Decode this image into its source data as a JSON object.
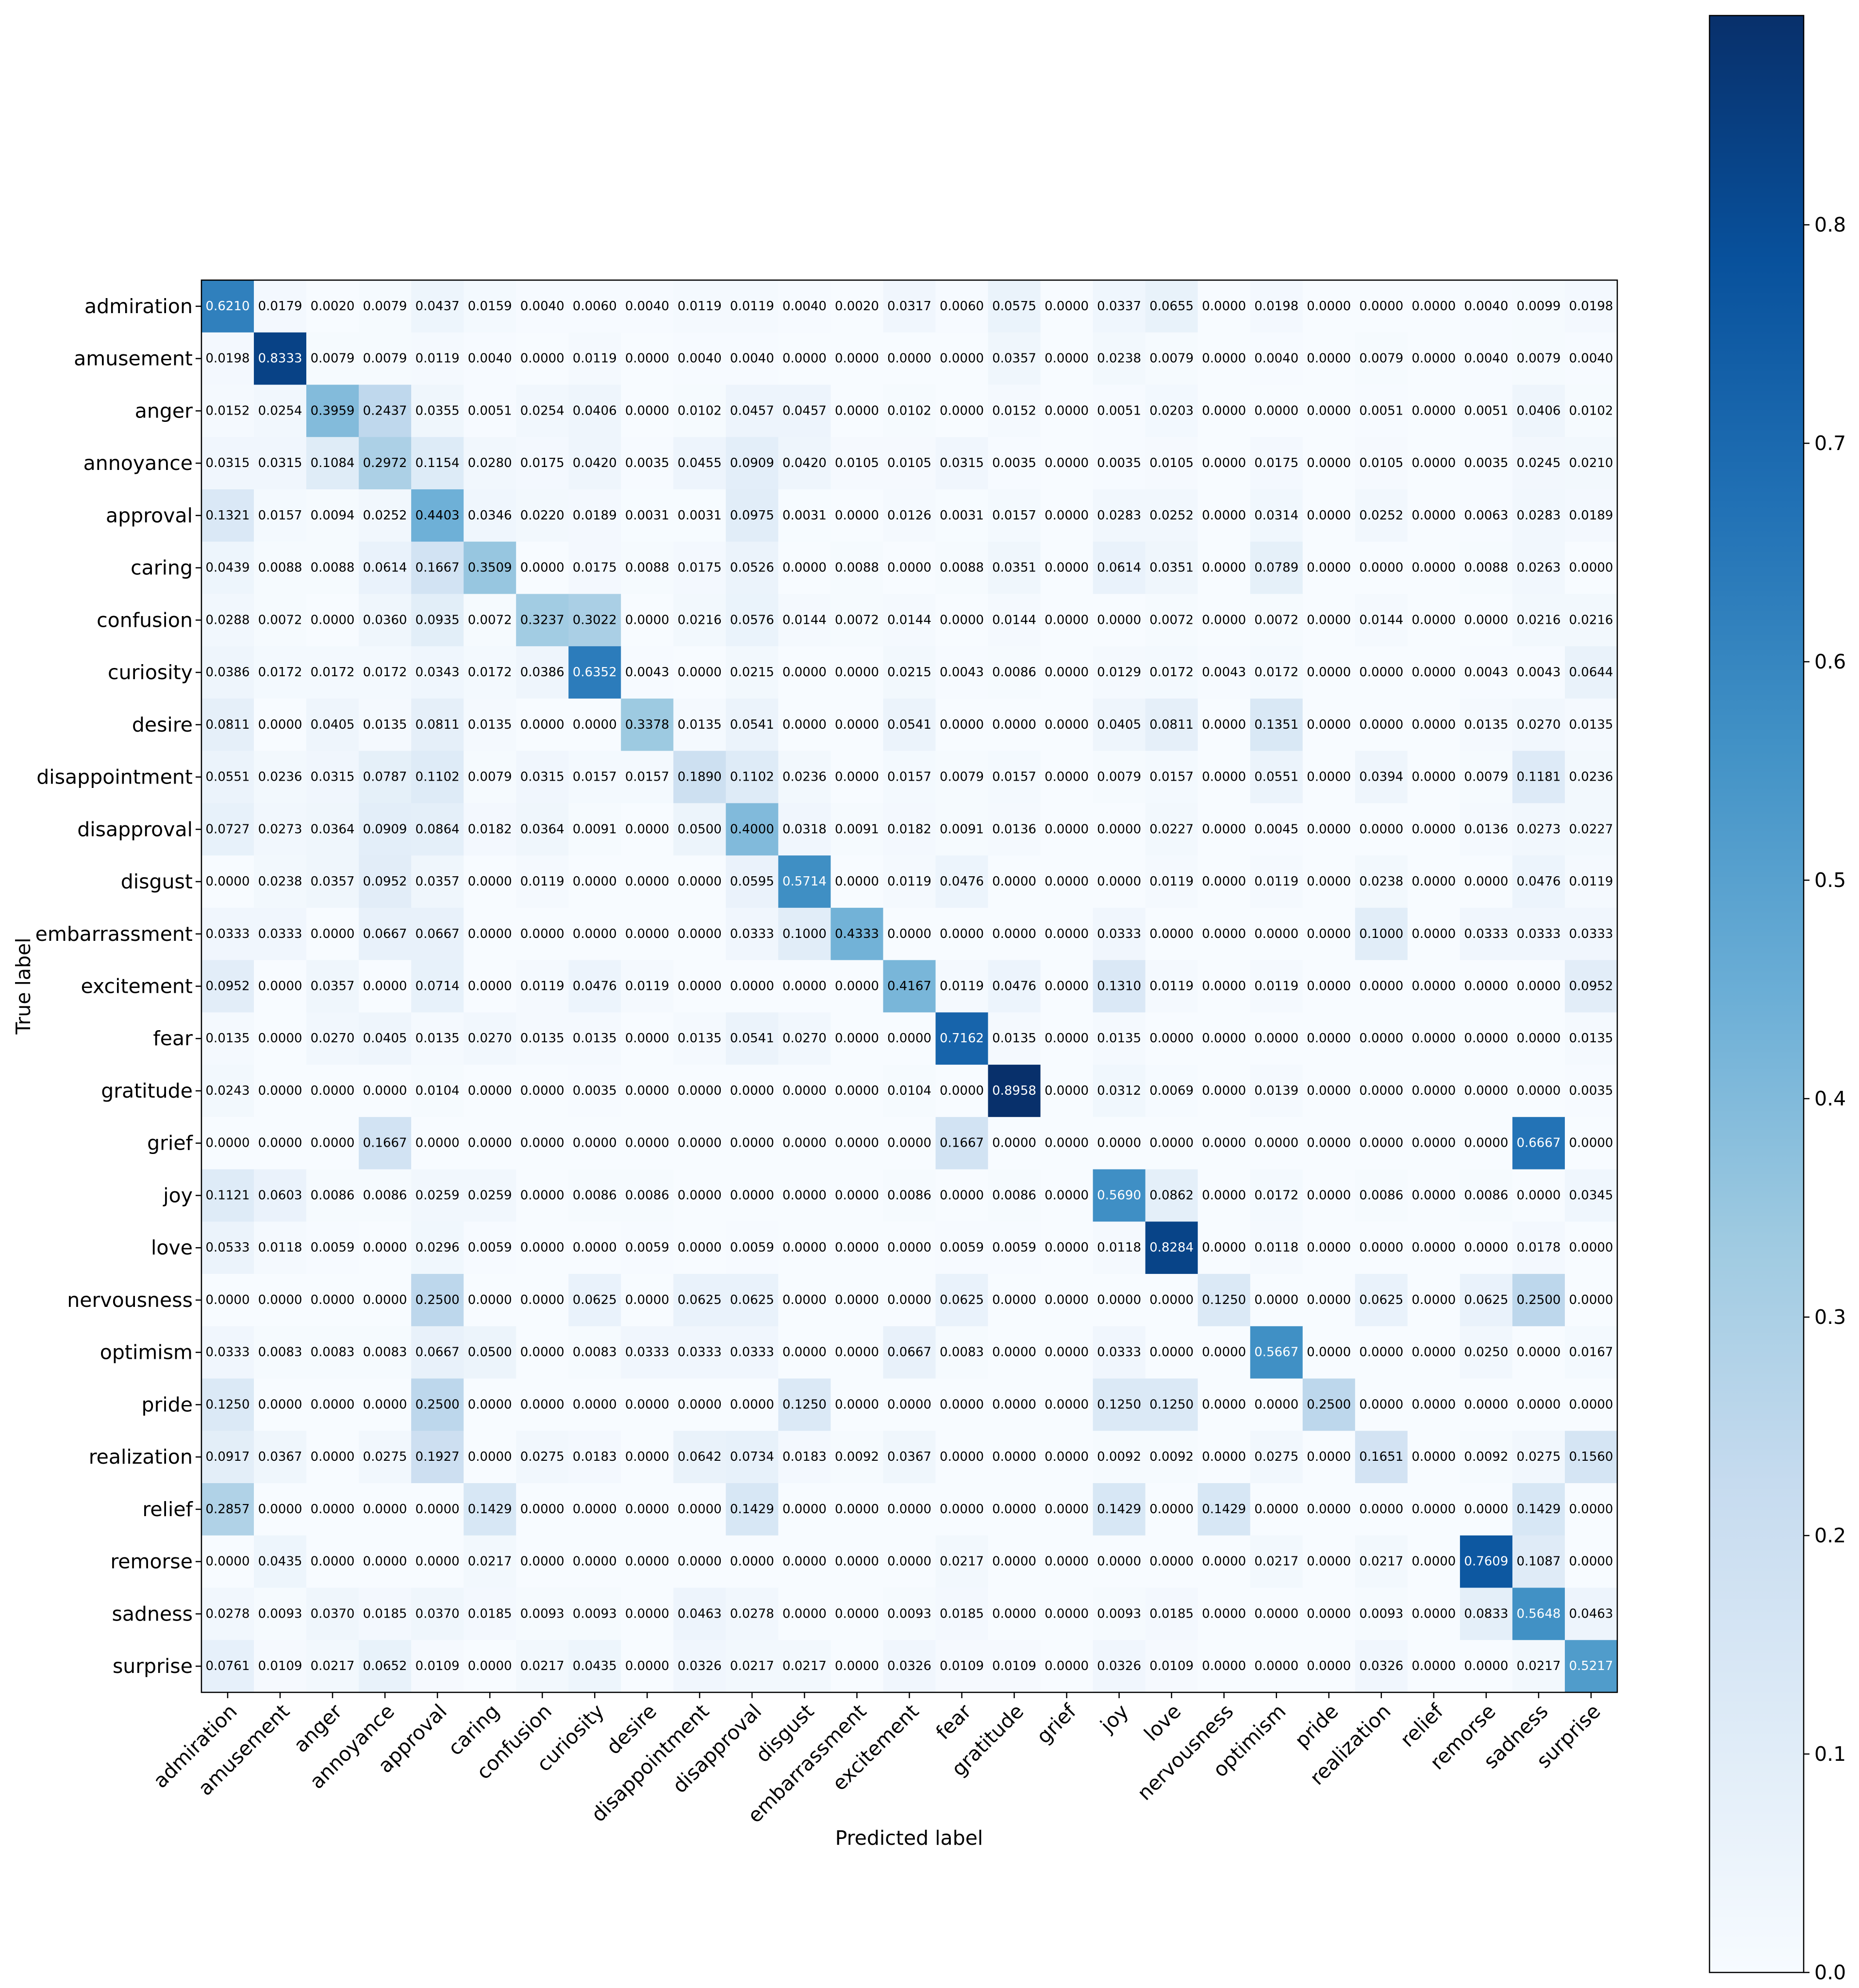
{
  "chart_data": {
    "type": "heatmap",
    "colormap": "Blues",
    "xlabel": "Predicted label",
    "ylabel": "True label",
    "categories": [
      "admiration",
      "amusement",
      "anger",
      "annoyance",
      "approval",
      "caring",
      "confusion",
      "curiosity",
      "desire",
      "disappointment",
      "disapproval",
      "disgust",
      "embarrassment",
      "excitement",
      "fear",
      "gratitude",
      "grief",
      "joy",
      "love",
      "nervousness",
      "optimism",
      "pride",
      "realization",
      "relief",
      "remorse",
      "sadness",
      "surprise"
    ],
    "values": [
      [
        0.621,
        0.0179,
        0.002,
        0.0079,
        0.0437,
        0.0159,
        0.004,
        0.006,
        0.004,
        0.0119,
        0.0119,
        0.004,
        0.002,
        0.0317,
        0.006,
        0.0575,
        0.0,
        0.0337,
        0.0655,
        0.0,
        0.0198,
        0.0,
        0.0,
        0.0,
        0.004,
        0.0099,
        0.0198
      ],
      [
        0.0198,
        0.8333,
        0.0079,
        0.0079,
        0.0119,
        0.004,
        0.0,
        0.0119,
        0.0,
        0.004,
        0.004,
        0.0,
        0.0,
        0.0,
        0.0,
        0.0357,
        0.0,
        0.0238,
        0.0079,
        0.0,
        0.004,
        0.0,
        0.0079,
        0.0,
        0.004,
        0.0079,
        0.004
      ],
      [
        0.0152,
        0.0254,
        0.3959,
        0.2437,
        0.0355,
        0.0051,
        0.0254,
        0.0406,
        0.0,
        0.0102,
        0.0457,
        0.0457,
        0.0,
        0.0102,
        0.0,
        0.0152,
        0.0,
        0.0051,
        0.0203,
        0.0,
        0.0,
        0.0,
        0.0051,
        0.0,
        0.0051,
        0.0406,
        0.0102
      ],
      [
        0.0315,
        0.0315,
        0.1084,
        0.2972,
        0.1154,
        0.028,
        0.0175,
        0.042,
        0.0035,
        0.0455,
        0.0909,
        0.042,
        0.0105,
        0.0105,
        0.0315,
        0.0035,
        0.0,
        0.0035,
        0.0105,
        0.0,
        0.0175,
        0.0,
        0.0105,
        0.0,
        0.0035,
        0.0245,
        0.021
      ],
      [
        0.1321,
        0.0157,
        0.0094,
        0.0252,
        0.4403,
        0.0346,
        0.022,
        0.0189,
        0.0031,
        0.0031,
        0.0975,
        0.0031,
        0.0,
        0.0126,
        0.0031,
        0.0157,
        0.0,
        0.0283,
        0.0252,
        0.0,
        0.0314,
        0.0,
        0.0252,
        0.0,
        0.0063,
        0.0283,
        0.0189
      ],
      [
        0.0439,
        0.0088,
        0.0088,
        0.0614,
        0.1667,
        0.3509,
        0.0,
        0.0175,
        0.0088,
        0.0175,
        0.0526,
        0.0,
        0.0088,
        0.0,
        0.0088,
        0.0351,
        0.0,
        0.0614,
        0.0351,
        0.0,
        0.0789,
        0.0,
        0.0,
        0.0,
        0.0088,
        0.0263,
        0.0
      ],
      [
        0.0288,
        0.0072,
        0.0,
        0.036,
        0.0935,
        0.0072,
        0.3237,
        0.3022,
        0.0,
        0.0216,
        0.0576,
        0.0144,
        0.0072,
        0.0144,
        0.0,
        0.0144,
        0.0,
        0.0,
        0.0072,
        0.0,
        0.0072,
        0.0,
        0.0144,
        0.0,
        0.0,
        0.0216,
        0.0216
      ],
      [
        0.0386,
        0.0172,
        0.0172,
        0.0172,
        0.0343,
        0.0172,
        0.0386,
        0.6352,
        0.0043,
        0.0,
        0.0215,
        0.0,
        0.0,
        0.0215,
        0.0043,
        0.0086,
        0.0,
        0.0129,
        0.0172,
        0.0043,
        0.0172,
        0.0,
        0.0,
        0.0,
        0.0043,
        0.0043,
        0.0644
      ],
      [
        0.0811,
        0.0,
        0.0405,
        0.0135,
        0.0811,
        0.0135,
        0.0,
        0.0,
        0.3378,
        0.0135,
        0.0541,
        0.0,
        0.0,
        0.0541,
        0.0,
        0.0,
        0.0,
        0.0405,
        0.0811,
        0.0,
        0.1351,
        0.0,
        0.0,
        0.0,
        0.0135,
        0.027,
        0.0135
      ],
      [
        0.0551,
        0.0236,
        0.0315,
        0.0787,
        0.1102,
        0.0079,
        0.0315,
        0.0157,
        0.0157,
        0.189,
        0.1102,
        0.0236,
        0.0,
        0.0157,
        0.0079,
        0.0157,
        0.0,
        0.0079,
        0.0157,
        0.0,
        0.0551,
        0.0,
        0.0394,
        0.0,
        0.0079,
        0.1181,
        0.0236
      ],
      [
        0.0727,
        0.0273,
        0.0364,
        0.0909,
        0.0864,
        0.0182,
        0.0364,
        0.0091,
        0.0,
        0.05,
        0.4,
        0.0318,
        0.0091,
        0.0182,
        0.0091,
        0.0136,
        0.0,
        0.0,
        0.0227,
        0.0,
        0.0045,
        0.0,
        0.0,
        0.0,
        0.0136,
        0.0273,
        0.0227
      ],
      [
        0.0,
        0.0238,
        0.0357,
        0.0952,
        0.0357,
        0.0,
        0.0119,
        0.0,
        0.0,
        0.0,
        0.0595,
        0.5714,
        0.0,
        0.0119,
        0.0476,
        0.0,
        0.0,
        0.0,
        0.0119,
        0.0,
        0.0119,
        0.0,
        0.0238,
        0.0,
        0.0,
        0.0476,
        0.0119
      ],
      [
        0.0333,
        0.0333,
        0.0,
        0.0667,
        0.0667,
        0.0,
        0.0,
        0.0,
        0.0,
        0.0,
        0.0333,
        0.1,
        0.4333,
        0.0,
        0.0,
        0.0,
        0.0,
        0.0333,
        0.0,
        0.0,
        0.0,
        0.0,
        0.1,
        0.0,
        0.0333,
        0.0333,
        0.0333
      ],
      [
        0.0952,
        0.0,
        0.0357,
        0.0,
        0.0714,
        0.0,
        0.0119,
        0.0476,
        0.0119,
        0.0,
        0.0,
        0.0,
        0.0,
        0.4167,
        0.0119,
        0.0476,
        0.0,
        0.131,
        0.0119,
        0.0,
        0.0119,
        0.0,
        0.0,
        0.0,
        0.0,
        0.0,
        0.0952
      ],
      [
        0.0135,
        0.0,
        0.027,
        0.0405,
        0.0135,
        0.027,
        0.0135,
        0.0135,
        0.0,
        0.0135,
        0.0541,
        0.027,
        0.0,
        0.0,
        0.7162,
        0.0135,
        0.0,
        0.0135,
        0.0,
        0.0,
        0.0,
        0.0,
        0.0,
        0.0,
        0.0,
        0.0,
        0.0135
      ],
      [
        0.0243,
        0.0,
        0.0,
        0.0,
        0.0104,
        0.0,
        0.0,
        0.0035,
        0.0,
        0.0,
        0.0,
        0.0,
        0.0,
        0.0104,
        0.0,
        0.8958,
        0.0,
        0.0312,
        0.0069,
        0.0,
        0.0139,
        0.0,
        0.0,
        0.0,
        0.0,
        0.0,
        0.0035
      ],
      [
        0.0,
        0.0,
        0.0,
        0.1667,
        0.0,
        0.0,
        0.0,
        0.0,
        0.0,
        0.0,
        0.0,
        0.0,
        0.0,
        0.0,
        0.1667,
        0.0,
        0.0,
        0.0,
        0.0,
        0.0,
        0.0,
        0.0,
        0.0,
        0.0,
        0.0,
        0.6667,
        0.0
      ],
      [
        0.1121,
        0.0603,
        0.0086,
        0.0086,
        0.0259,
        0.0259,
        0.0,
        0.0086,
        0.0086,
        0.0,
        0.0,
        0.0,
        0.0,
        0.0086,
        0.0,
        0.0086,
        0.0,
        0.569,
        0.0862,
        0.0,
        0.0172,
        0.0,
        0.0086,
        0.0,
        0.0086,
        0.0,
        0.0345
      ],
      [
        0.0533,
        0.0118,
        0.0059,
        0.0,
        0.0296,
        0.0059,
        0.0,
        0.0,
        0.0059,
        0.0,
        0.0059,
        0.0,
        0.0,
        0.0,
        0.0059,
        0.0059,
        0.0,
        0.0118,
        0.8284,
        0.0,
        0.0118,
        0.0,
        0.0,
        0.0,
        0.0,
        0.0178,
        0.0
      ],
      [
        0.0,
        0.0,
        0.0,
        0.0,
        0.25,
        0.0,
        0.0,
        0.0625,
        0.0,
        0.0625,
        0.0625,
        0.0,
        0.0,
        0.0,
        0.0625,
        0.0,
        0.0,
        0.0,
        0.0,
        0.125,
        0.0,
        0.0,
        0.0625,
        0.0,
        0.0625,
        0.25,
        0.0
      ],
      [
        0.0333,
        0.0083,
        0.0083,
        0.0083,
        0.0667,
        0.05,
        0.0,
        0.0083,
        0.0333,
        0.0333,
        0.0333,
        0.0,
        0.0,
        0.0667,
        0.0083,
        0.0,
        0.0,
        0.0333,
        0.0,
        0.0,
        0.5667,
        0.0,
        0.0,
        0.0,
        0.025,
        0.0,
        0.0167
      ],
      [
        0.125,
        0.0,
        0.0,
        0.0,
        0.25,
        0.0,
        0.0,
        0.0,
        0.0,
        0.0,
        0.0,
        0.125,
        0.0,
        0.0,
        0.0,
        0.0,
        0.0,
        0.125,
        0.125,
        0.0,
        0.0,
        0.25,
        0.0,
        0.0,
        0.0,
        0.0,
        0.0
      ],
      [
        0.0917,
        0.0367,
        0.0,
        0.0275,
        0.1927,
        0.0,
        0.0275,
        0.0183,
        0.0,
        0.0642,
        0.0734,
        0.0183,
        0.0092,
        0.0367,
        0.0,
        0.0,
        0.0,
        0.0092,
        0.0092,
        0.0,
        0.0275,
        0.0,
        0.1651,
        0.0,
        0.0092,
        0.0275,
        0.156
      ],
      [
        0.2857,
        0.0,
        0.0,
        0.0,
        0.0,
        0.1429,
        0.0,
        0.0,
        0.0,
        0.0,
        0.1429,
        0.0,
        0.0,
        0.0,
        0.0,
        0.0,
        0.0,
        0.1429,
        0.0,
        0.1429,
        0.0,
        0.0,
        0.0,
        0.0,
        0.0,
        0.1429,
        0.0
      ],
      [
        0.0,
        0.0435,
        0.0,
        0.0,
        0.0,
        0.0217,
        0.0,
        0.0,
        0.0,
        0.0,
        0.0,
        0.0,
        0.0,
        0.0,
        0.0217,
        0.0,
        0.0,
        0.0,
        0.0,
        0.0,
        0.0217,
        0.0,
        0.0217,
        0.0,
        0.7609,
        0.1087,
        0.0
      ],
      [
        0.0278,
        0.0093,
        0.037,
        0.0185,
        0.037,
        0.0185,
        0.0093,
        0.0093,
        0.0,
        0.0463,
        0.0278,
        0.0,
        0.0,
        0.0093,
        0.0185,
        0.0,
        0.0,
        0.0093,
        0.0185,
        0.0,
        0.0,
        0.0,
        0.0093,
        0.0,
        0.0833,
        0.5648,
        0.0463
      ],
      [
        0.0761,
        0.0109,
        0.0217,
        0.0652,
        0.0109,
        0.0,
        0.0217,
        0.0435,
        0.0,
        0.0326,
        0.0217,
        0.0217,
        0.0,
        0.0326,
        0.0109,
        0.0109,
        0.0,
        0.0326,
        0.0109,
        0.0,
        0.0,
        0.0,
        0.0326,
        0.0,
        0.0,
        0.0217,
        0.5217
      ]
    ],
    "colorbar": {
      "range": [
        0,
        0.8958
      ],
      "ticks": [
        0.0,
        0.1,
        0.2,
        0.3,
        0.4,
        0.5,
        0.6,
        0.7,
        0.8
      ],
      "tick_labels": [
        "0.0",
        "0.1",
        "0.2",
        "0.3",
        "0.4",
        "0.5",
        "0.6",
        "0.7",
        "0.8"
      ],
      "placement": "right"
    },
    "value_format": "4 decimals",
    "text_color_light": "#ffffff",
    "text_color_dark": "#000000",
    "grid": false
  }
}
